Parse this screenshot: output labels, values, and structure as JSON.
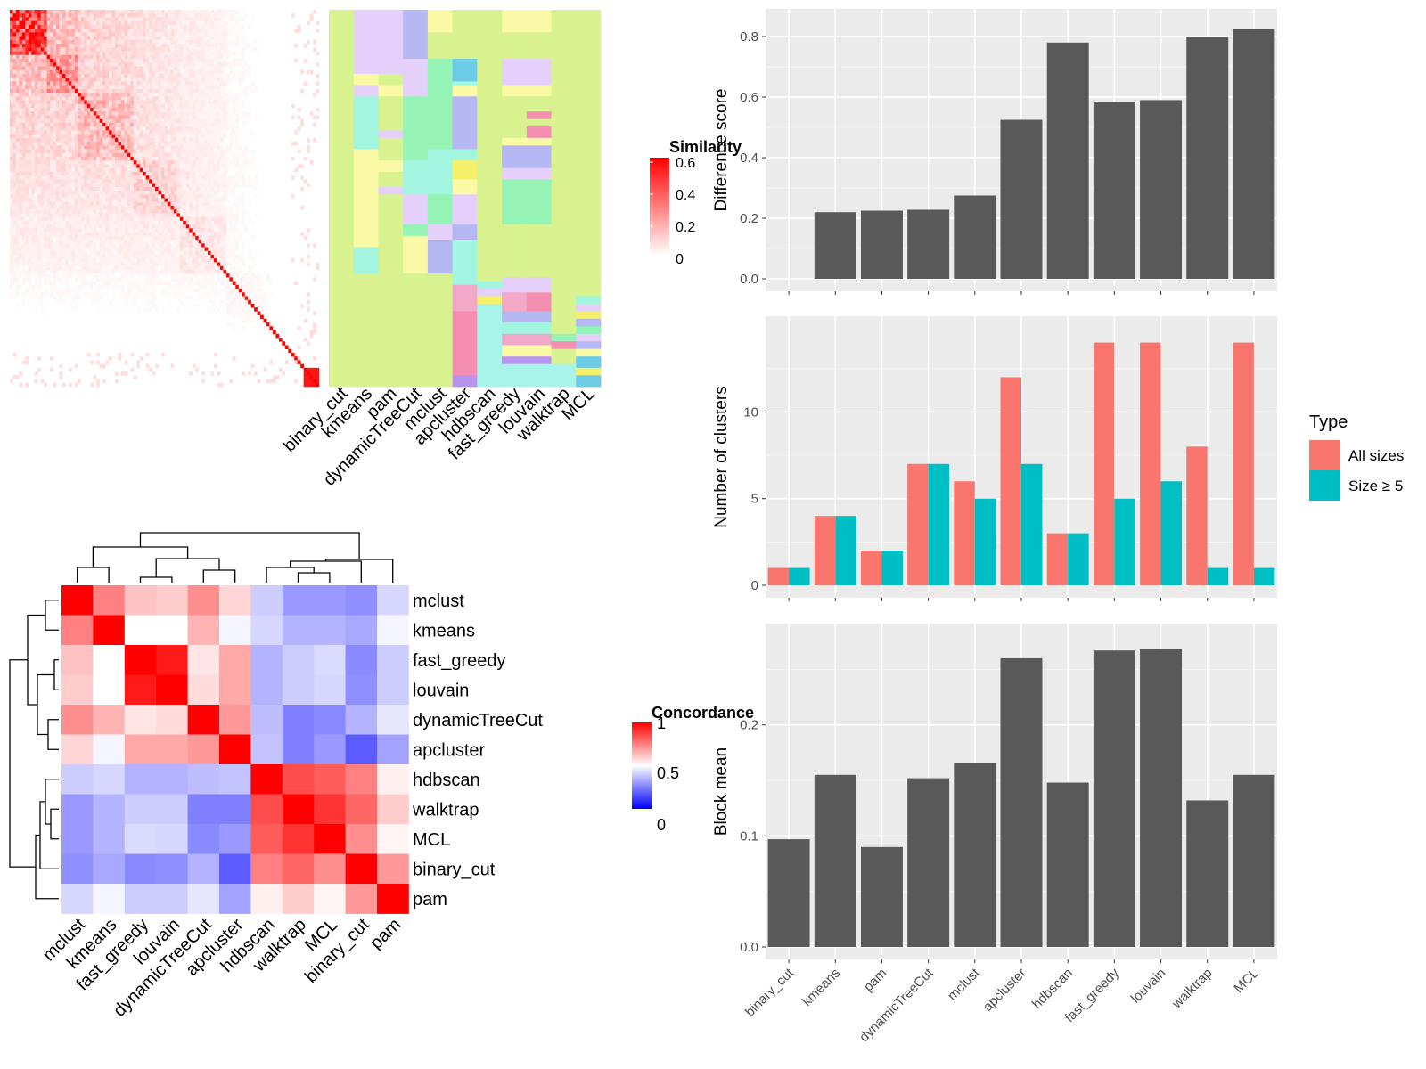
{
  "methods_order_top": [
    "binary_cut",
    "kmeans",
    "pam",
    "dynamicTreeCut",
    "mclust",
    "apcluster",
    "hdbscan",
    "fast_greedy",
    "louvain",
    "walktrap",
    "MCL"
  ],
  "similarity_legend": {
    "title": "Similarity",
    "ticks": [
      "0.6",
      "0.4",
      "0.2",
      "0"
    ],
    "colors": [
      "#ff0000",
      "#ffffff"
    ]
  },
  "concordance_legend": {
    "title": "Concordance",
    "ticks": [
      "1",
      "0.5",
      "0"
    ],
    "colors": [
      "#ff0000",
      "#ffffff",
      "#0000ff"
    ]
  },
  "group_palette": [
    "#d7f28e",
    "#e4d0fb",
    "#b6b8f4",
    "#faf9a5",
    "#a2f5df",
    "#95f3b6",
    "#f2a8c7",
    "#6ecbe5",
    "#f4f06a",
    "#b994ef",
    "#a8f4ea",
    "#f58fb1",
    "#8ef5b4"
  ],
  "heatmap_sim": {
    "n": 100,
    "note_values": "estimated similarity matrix shown as red intensity"
  },
  "concordance": {
    "methods": [
      "mclust",
      "kmeans",
      "fast_greedy",
      "louvain",
      "dynamicTreeCut",
      "apcluster",
      "hdbscan",
      "walktrap",
      "MCL",
      "binary_cut",
      "pam"
    ],
    "matrix": [
      [
        1.0,
        0.75,
        0.62,
        0.6,
        0.72,
        0.58,
        0.4,
        0.3,
        0.3,
        0.28,
        0.42
      ],
      [
        0.75,
        1.0,
        0.5,
        0.5,
        0.65,
        0.48,
        0.42,
        0.35,
        0.35,
        0.33,
        0.48
      ],
      [
        0.62,
        0.5,
        1.0,
        0.95,
        0.55,
        0.67,
        0.35,
        0.4,
        0.43,
        0.27,
        0.4
      ],
      [
        0.6,
        0.5,
        0.95,
        1.0,
        0.57,
        0.67,
        0.35,
        0.4,
        0.42,
        0.28,
        0.4
      ],
      [
        0.72,
        0.65,
        0.55,
        0.57,
        1.0,
        0.7,
        0.37,
        0.25,
        0.27,
        0.35,
        0.45
      ],
      [
        0.58,
        0.48,
        0.67,
        0.67,
        0.7,
        1.0,
        0.38,
        0.25,
        0.3,
        0.18,
        0.32
      ],
      [
        0.4,
        0.42,
        0.35,
        0.35,
        0.37,
        0.38,
        1.0,
        0.85,
        0.82,
        0.75,
        0.53
      ],
      [
        0.3,
        0.35,
        0.4,
        0.4,
        0.25,
        0.25,
        0.85,
        1.0,
        0.9,
        0.8,
        0.6
      ],
      [
        0.3,
        0.35,
        0.43,
        0.42,
        0.27,
        0.3,
        0.82,
        0.9,
        1.0,
        0.72,
        0.52
      ],
      [
        0.28,
        0.33,
        0.27,
        0.28,
        0.35,
        0.18,
        0.75,
        0.8,
        0.72,
        1.0,
        0.7
      ],
      [
        0.42,
        0.48,
        0.4,
        0.4,
        0.45,
        0.32,
        0.53,
        0.6,
        0.52,
        0.7,
        1.0
      ]
    ]
  },
  "chart_data": [
    {
      "type": "bar",
      "categories": [
        "binary_cut",
        "kmeans",
        "pam",
        "dynamicTreeCut",
        "mclust",
        "apcluster",
        "hdbscan",
        "fast_greedy",
        "louvain",
        "walktrap",
        "MCL"
      ],
      "values": [
        0.0,
        0.22,
        0.225,
        0.228,
        0.275,
        0.525,
        0.78,
        0.585,
        0.59,
        0.8,
        0.825
      ],
      "title": "",
      "xlabel": "",
      "ylabel": "Difference score",
      "ylim": [
        0,
        0.85
      ],
      "yticks": [
        "0.0",
        "0.2",
        "0.4",
        "0.6",
        "0.8"
      ],
      "ytick_values": [
        0,
        0.2,
        0.4,
        0.6,
        0.8
      ],
      "bar_color": "#595959",
      "grid": true
    },
    {
      "type": "bar",
      "categories": [
        "binary_cut",
        "kmeans",
        "pam",
        "dynamicTreeCut",
        "mclust",
        "apcluster",
        "hdbscan",
        "fast_greedy",
        "louvain",
        "walktrap",
        "MCL"
      ],
      "series": [
        {
          "name": "All sizes",
          "values": [
            1,
            4,
            2,
            7,
            6,
            12,
            3,
            14,
            14,
            8,
            14
          ],
          "color": "#f8766d"
        },
        {
          "name": "Size ≥ 5",
          "values": [
            1,
            4,
            2,
            7,
            5,
            7,
            3,
            5,
            6,
            1,
            1
          ],
          "color": "#00bfc4"
        }
      ],
      "legend_title": "Type",
      "legend_position": "right",
      "ylabel": "Number of clusters",
      "ylim": [
        0,
        14.8
      ],
      "yticks": [
        "0",
        "5",
        "10"
      ],
      "ytick_values": [
        0,
        5,
        10
      ],
      "grid": true
    },
    {
      "type": "bar",
      "categories": [
        "binary_cut",
        "kmeans",
        "pam",
        "dynamicTreeCut",
        "mclust",
        "apcluster",
        "hdbscan",
        "fast_greedy",
        "louvain",
        "walktrap",
        "MCL"
      ],
      "values": [
        0.097,
        0.155,
        0.09,
        0.152,
        0.166,
        0.26,
        0.148,
        0.267,
        0.268,
        0.132,
        0.155
      ],
      "ylabel": "Block mean",
      "ylim": [
        0,
        0.28
      ],
      "yticks": [
        "0.0",
        "0.1",
        "0.2"
      ],
      "ytick_values": [
        0,
        0.1,
        0.2
      ],
      "bar_color": "#595959",
      "grid": true
    }
  ]
}
